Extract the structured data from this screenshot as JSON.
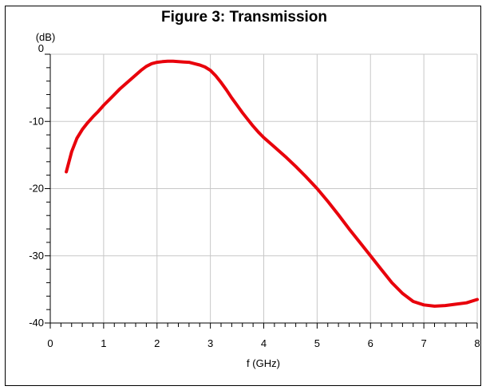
{
  "chart_data": {
    "type": "line",
    "title": "Figure 3: Transmission",
    "xlabel": "f (GHz)",
    "ylabel": "(dB)",
    "xlim": [
      0,
      8
    ],
    "ylim": [
      -40,
      0
    ],
    "x_ticks": [
      "0",
      "1",
      "2",
      "3",
      "4",
      "5",
      "6",
      "7",
      "8"
    ],
    "y_ticks": [
      "0",
      "-10",
      "-20",
      "-30",
      "-40"
    ],
    "grid": true,
    "series": [
      {
        "color": "#e8000b",
        "x": [
          0.3,
          0.4,
          0.5,
          0.6,
          0.7,
          0.8,
          0.9,
          1.0,
          1.1,
          1.2,
          1.3,
          1.4,
          1.5,
          1.6,
          1.7,
          1.8,
          1.9,
          2.0,
          2.1,
          2.2,
          2.3,
          2.4,
          2.5,
          2.6,
          2.7,
          2.8,
          2.9,
          3.0,
          3.1,
          3.2,
          3.3,
          3.4,
          3.5,
          3.6,
          3.7,
          3.8,
          3.9,
          4.0,
          4.2,
          4.4,
          4.6,
          4.8,
          5.0,
          5.2,
          5.4,
          5.6,
          5.8,
          6.0,
          6.2,
          6.4,
          6.6,
          6.8,
          7.0,
          7.2,
          7.4,
          7.6,
          7.8,
          8.0
        ],
        "y": [
          -17.5,
          -14.5,
          -12.5,
          -11.2,
          -10.2,
          -9.3,
          -8.5,
          -7.6,
          -6.8,
          -6.0,
          -5.2,
          -4.5,
          -3.8,
          -3.1,
          -2.4,
          -1.8,
          -1.4,
          -1.2,
          -1.1,
          -1.05,
          -1.05,
          -1.1,
          -1.15,
          -1.2,
          -1.4,
          -1.6,
          -1.9,
          -2.4,
          -3.2,
          -4.2,
          -5.3,
          -6.5,
          -7.6,
          -8.7,
          -9.7,
          -10.7,
          -11.6,
          -12.4,
          -13.8,
          -15.2,
          -16.7,
          -18.3,
          -20.0,
          -21.9,
          -23.9,
          -26.0,
          -28.0,
          -30.0,
          -32.0,
          -34.0,
          -35.6,
          -36.8,
          -37.3,
          -37.5,
          -37.4,
          -37.2,
          -37.0,
          -36.5
        ]
      }
    ]
  }
}
